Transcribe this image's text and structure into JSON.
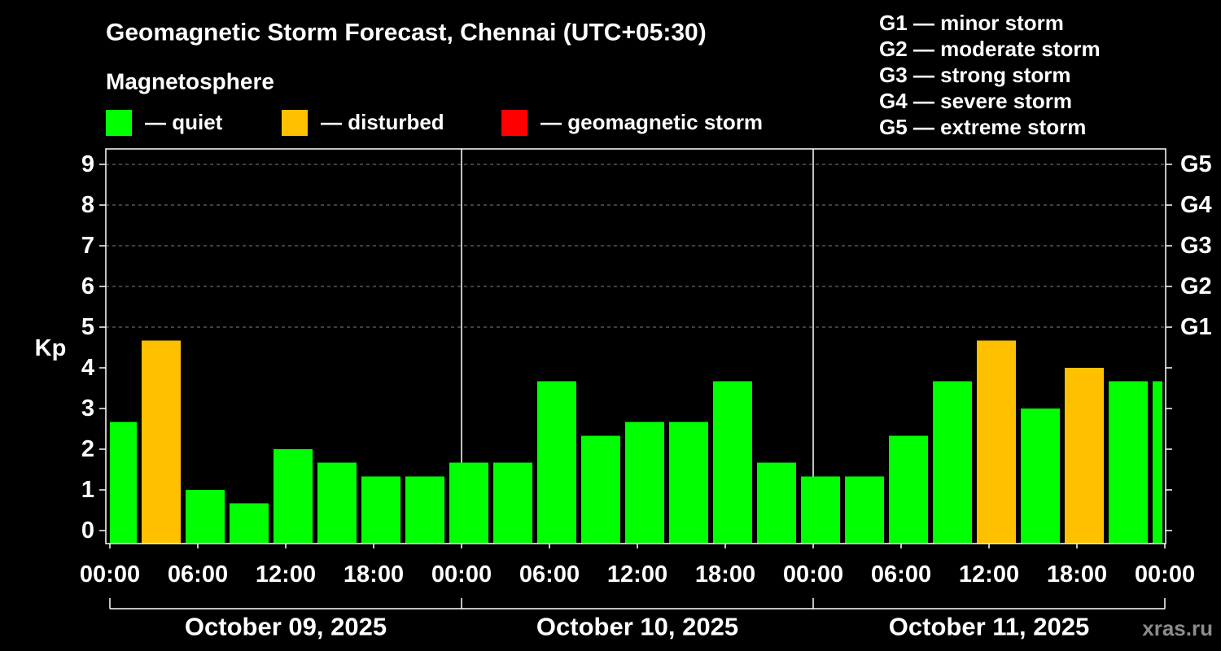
{
  "watermark": "xras.ru",
  "colors": {
    "background": "#000000",
    "axis": "#ffffff",
    "grid": "#7f7f7f",
    "text": "#ffffff",
    "watermark": "#8c8c8c"
  },
  "chart_data": {
    "type": "bar",
    "title": "Geomagnetic Storm Forecast, Chennai (UTC+05:30)",
    "legend": {
      "heading": "Magnetosphere",
      "items": [
        {
          "label": "— quiet",
          "color": "#00ff00"
        },
        {
          "label": "— disturbed",
          "color": "#ffc000"
        },
        {
          "label": "— geomagnetic storm",
          "color": "#ff0000"
        }
      ]
    },
    "storm_scale": [
      "G1 — minor storm",
      "G2 — moderate storm",
      "G3 — strong storm",
      "G4 — severe storm",
      "G5 — extreme storm"
    ],
    "ylabel": "Kp",
    "ylim": [
      -0.32,
      9.38
    ],
    "yticks": [
      "0",
      "1",
      "2",
      "3",
      "4",
      "5",
      "6",
      "7",
      "8",
      "9"
    ],
    "right_axis": [
      {
        "kp": 5,
        "label": "G1"
      },
      {
        "kp": 6,
        "label": "G2"
      },
      {
        "kp": 7,
        "label": "G3"
      },
      {
        "kp": 8,
        "label": "G4"
      },
      {
        "kp": 9,
        "label": "G5"
      }
    ],
    "grid": true,
    "grid_levels": [
      5,
      6,
      7,
      8,
      9
    ],
    "xlim": [
      "2025-10-09 00:00",
      "2025-10-12 00:00"
    ],
    "xticks": [
      "00:00",
      "06:00",
      "12:00",
      "18:00",
      "00:00",
      "06:00",
      "12:00",
      "18:00",
      "00:00",
      "06:00",
      "12:00",
      "18:00",
      "00:00"
    ],
    "dates": [
      "October 09, 2025",
      "October 10, 2025",
      "October 11, 2025"
    ],
    "bars": [
      {
        "start": "2025-10-09 00:00",
        "end": "2025-10-09 02:00",
        "kp": 2.67,
        "color": "#00ff00"
      },
      {
        "start": "2025-10-09 02:00",
        "end": "2025-10-09 05:00",
        "kp": 4.67,
        "color": "#ffc000"
      },
      {
        "start": "2025-10-09 05:00",
        "end": "2025-10-09 08:00",
        "kp": 1.0,
        "color": "#00ff00"
      },
      {
        "start": "2025-10-09 08:00",
        "end": "2025-10-09 11:00",
        "kp": 0.67,
        "color": "#00ff00"
      },
      {
        "start": "2025-10-09 11:00",
        "end": "2025-10-09 14:00",
        "kp": 2.0,
        "color": "#00ff00"
      },
      {
        "start": "2025-10-09 14:00",
        "end": "2025-10-09 17:00",
        "kp": 1.67,
        "color": "#00ff00"
      },
      {
        "start": "2025-10-09 17:00",
        "end": "2025-10-09 20:00",
        "kp": 1.33,
        "color": "#00ff00"
      },
      {
        "start": "2025-10-09 20:00",
        "end": "2025-10-09 23:00",
        "kp": 1.33,
        "color": "#00ff00"
      },
      {
        "start": "2025-10-09 23:00",
        "end": "2025-10-10 02:00",
        "kp": 1.67,
        "color": "#00ff00"
      },
      {
        "start": "2025-10-10 02:00",
        "end": "2025-10-10 05:00",
        "kp": 1.67,
        "color": "#00ff00"
      },
      {
        "start": "2025-10-10 05:00",
        "end": "2025-10-10 08:00",
        "kp": 3.67,
        "color": "#00ff00"
      },
      {
        "start": "2025-10-10 08:00",
        "end": "2025-10-10 11:00",
        "kp": 2.33,
        "color": "#00ff00"
      },
      {
        "start": "2025-10-10 11:00",
        "end": "2025-10-10 14:00",
        "kp": 2.67,
        "color": "#00ff00"
      },
      {
        "start": "2025-10-10 14:00",
        "end": "2025-10-10 17:00",
        "kp": 2.67,
        "color": "#00ff00"
      },
      {
        "start": "2025-10-10 17:00",
        "end": "2025-10-10 20:00",
        "kp": 3.67,
        "color": "#00ff00"
      },
      {
        "start": "2025-10-10 20:00",
        "end": "2025-10-10 23:00",
        "kp": 1.67,
        "color": "#00ff00"
      },
      {
        "start": "2025-10-10 23:00",
        "end": "2025-10-11 02:00",
        "kp": 1.33,
        "color": "#00ff00"
      },
      {
        "start": "2025-10-11 02:00",
        "end": "2025-10-11 05:00",
        "kp": 1.33,
        "color": "#00ff00"
      },
      {
        "start": "2025-10-11 05:00",
        "end": "2025-10-11 08:00",
        "kp": 2.33,
        "color": "#00ff00"
      },
      {
        "start": "2025-10-11 08:00",
        "end": "2025-10-11 11:00",
        "kp": 3.67,
        "color": "#00ff00"
      },
      {
        "start": "2025-10-11 11:00",
        "end": "2025-10-11 14:00",
        "kp": 4.67,
        "color": "#ffc000"
      },
      {
        "start": "2025-10-11 14:00",
        "end": "2025-10-11 17:00",
        "kp": 3.0,
        "color": "#00ff00"
      },
      {
        "start": "2025-10-11 17:00",
        "end": "2025-10-11 20:00",
        "kp": 4.0,
        "color": "#ffc000"
      },
      {
        "start": "2025-10-11 20:00",
        "end": "2025-10-11 23:00",
        "kp": 3.67,
        "color": "#00ff00"
      },
      {
        "start": "2025-10-11 23:00",
        "end": "2025-10-12 00:00",
        "kp": 3.67,
        "color": "#00ff00"
      }
    ]
  }
}
